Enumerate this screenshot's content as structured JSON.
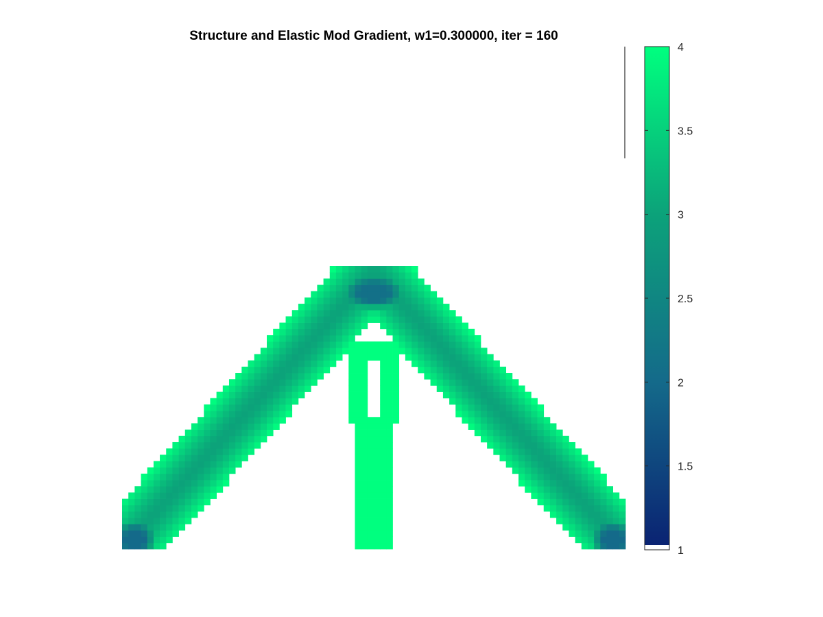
{
  "chart_data": {
    "type": "heatmap",
    "title": "Structure and Elastic Mod Gradient, w1=0.300000, iter = 160",
    "xlabel": "",
    "ylabel": "",
    "grid": false,
    "domain": {
      "nelx": 80,
      "nely": 45
    },
    "colorbar": {
      "location": "right",
      "clim": [
        1,
        4
      ],
      "ticks": [
        1,
        1.5,
        2,
        2.5,
        3,
        3.5,
        4
      ],
      "tick_labels": [
        "1",
        "1.5",
        "2",
        "2.5",
        "3",
        "3.5",
        "4"
      ],
      "colormap_stops": [
        {
          "value": 1.0,
          "color": "#0a2172"
        },
        {
          "value": 2.0,
          "color": "#146a8a"
        },
        {
          "value": 3.0,
          "color": "#0ca27a"
        },
        {
          "value": 4.0,
          "color": "#00ff7f"
        }
      ],
      "void_color": "#ffffff"
    },
    "structure": {
      "description_values": "elastic modulus field on an 80x45 element grid; void elements are white",
      "left_arm": {
        "from": [
          0,
          0
        ],
        "to": [
          40,
          44
        ],
        "half_width_elems": 5.2
      },
      "right_arm": {
        "from": [
          80,
          0
        ],
        "to": [
          40,
          44
        ],
        "half_width_elems": 5.2
      },
      "center_post": {
        "x_range": [
          37,
          43
        ],
        "y_range": [
          0,
          20
        ]
      },
      "upper_post": {
        "x_range": [
          36,
          44
        ],
        "y_range": [
          20,
          33
        ]
      },
      "hole": {
        "x_range": [
          39,
          41
        ],
        "y_range": [
          21,
          30
        ]
      },
      "surface_value": 4.0,
      "core_value": 3.0,
      "apex_value": 2.1,
      "support_value": 2.0
    }
  }
}
